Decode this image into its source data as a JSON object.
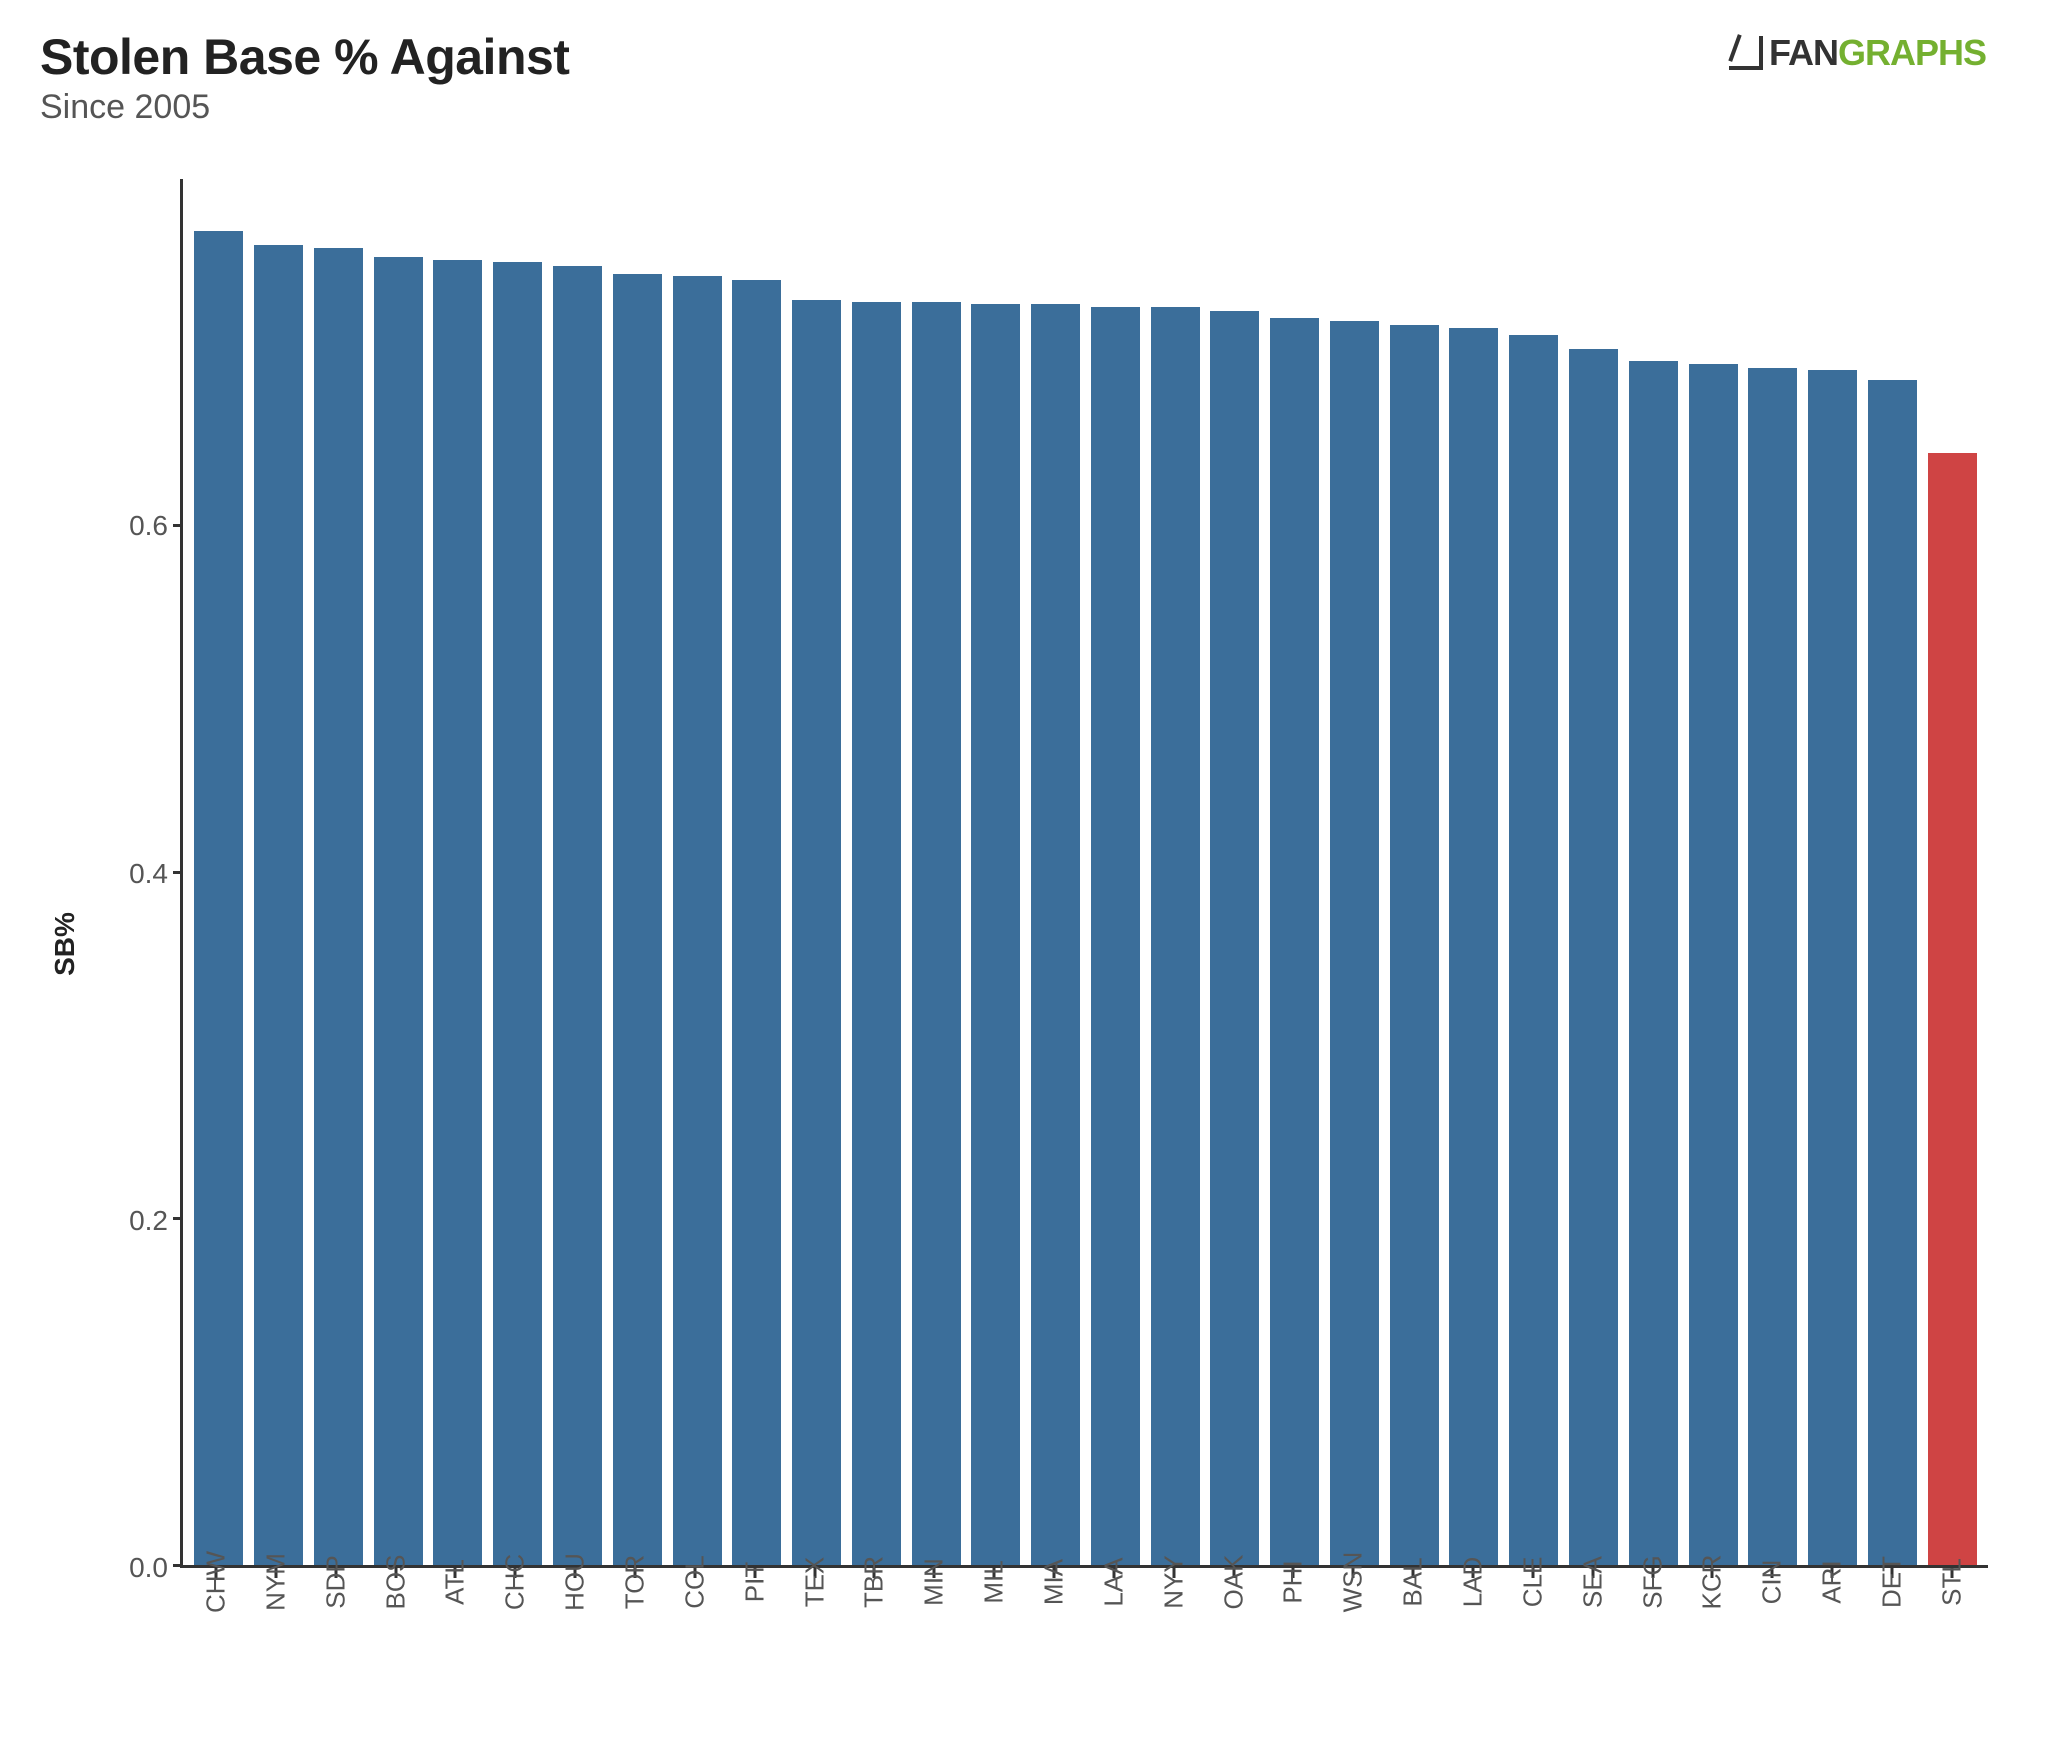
{
  "header": {
    "title": "Stolen Base % Against",
    "subtitle": "Since 2005",
    "logo": {
      "fan": "FAN",
      "graphs": "GRAPHS"
    }
  },
  "chart": {
    "type": "bar",
    "ylabel": "SB%",
    "ylim": [
      0.0,
      0.8
    ],
    "yticks": [
      0.0,
      0.2,
      0.4,
      0.6
    ],
    "ytick_labels": [
      "0.0",
      "0.2",
      "0.4",
      "0.6"
    ],
    "bar_default_color": "#3b6e9a",
    "bar_highlight_color": "#cf4444",
    "axis_color": "#333333",
    "background_color": "#ffffff",
    "tick_label_color": "#555555",
    "bar_width_ratio": 0.82,
    "title_fontsize": 50,
    "subtitle_fontsize": 34,
    "ylabel_fontsize": 28,
    "tick_fontsize": 28,
    "xlabel_fontsize": 26,
    "categories": [
      "CHW",
      "NYM",
      "SDP",
      "BOS",
      "ATL",
      "CHC",
      "HOU",
      "TOR",
      "COL",
      "PIT",
      "TEX",
      "TBR",
      "MIN",
      "MIL",
      "MIA",
      "LAA",
      "NYY",
      "OAK",
      "PHI",
      "WSN",
      "BAL",
      "LAD",
      "CLE",
      "SEA",
      "SFG",
      "KCR",
      "CIN",
      "ARI",
      "DET",
      "STL"
    ],
    "values": [
      0.77,
      0.762,
      0.76,
      0.755,
      0.753,
      0.752,
      0.75,
      0.745,
      0.744,
      0.742,
      0.73,
      0.729,
      0.729,
      0.728,
      0.728,
      0.726,
      0.726,
      0.724,
      0.72,
      0.718,
      0.716,
      0.714,
      0.71,
      0.702,
      0.695,
      0.693,
      0.691,
      0.69,
      0.684,
      0.642
    ],
    "highlight_index": 29
  }
}
